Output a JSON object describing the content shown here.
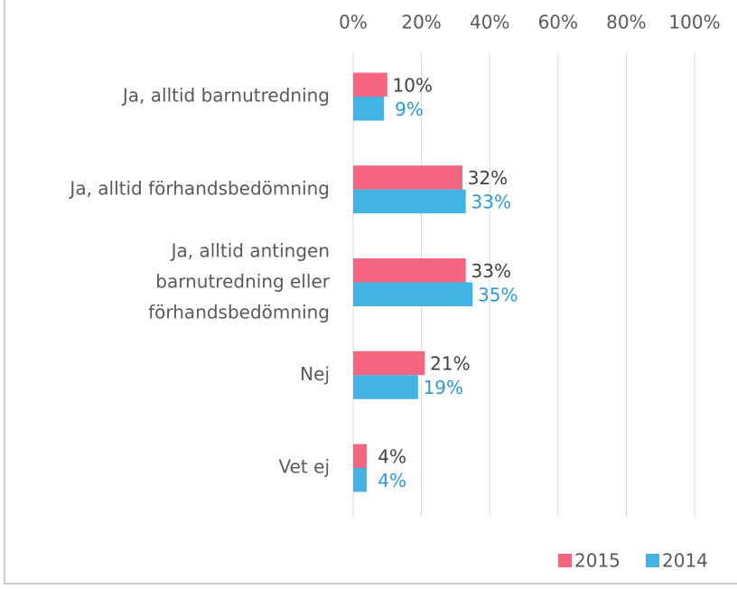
{
  "chart_data": {
    "type": "bar",
    "orientation": "horizontal",
    "categories": [
      "Ja, alltid barnutredning",
      "Ja, alltid förhandsbedömning",
      "Ja, alltid antingen\nbarnutredning eller\nförhandsbedömning",
      "Nej",
      "Vet ej"
    ],
    "series": [
      {
        "name": "2015",
        "color": "#f4657f",
        "label_color": "#404040",
        "values": [
          10,
          32,
          33,
          21,
          4
        ],
        "value_labels": [
          "10%",
          "32%",
          "33%",
          "21%",
          "4%"
        ]
      },
      {
        "name": "2014",
        "color": "#41b4e4",
        "label_color": "#2e9ad0",
        "values": [
          9,
          33,
          35,
          19,
          4
        ],
        "value_labels": [
          "9%",
          "33%",
          "35%",
          "19%",
          "4%"
        ]
      }
    ],
    "xlim": [
      0,
      100
    ],
    "xticks": [
      {
        "value": 0,
        "label": "0%"
      },
      {
        "value": 20,
        "label": "20%"
      },
      {
        "value": 40,
        "label": "40%"
      },
      {
        "value": 60,
        "label": "60%"
      },
      {
        "value": 80,
        "label": "80%"
      },
      {
        "value": 100,
        "label": "100%"
      }
    ],
    "grid": true,
    "legend": "bottom-right"
  }
}
